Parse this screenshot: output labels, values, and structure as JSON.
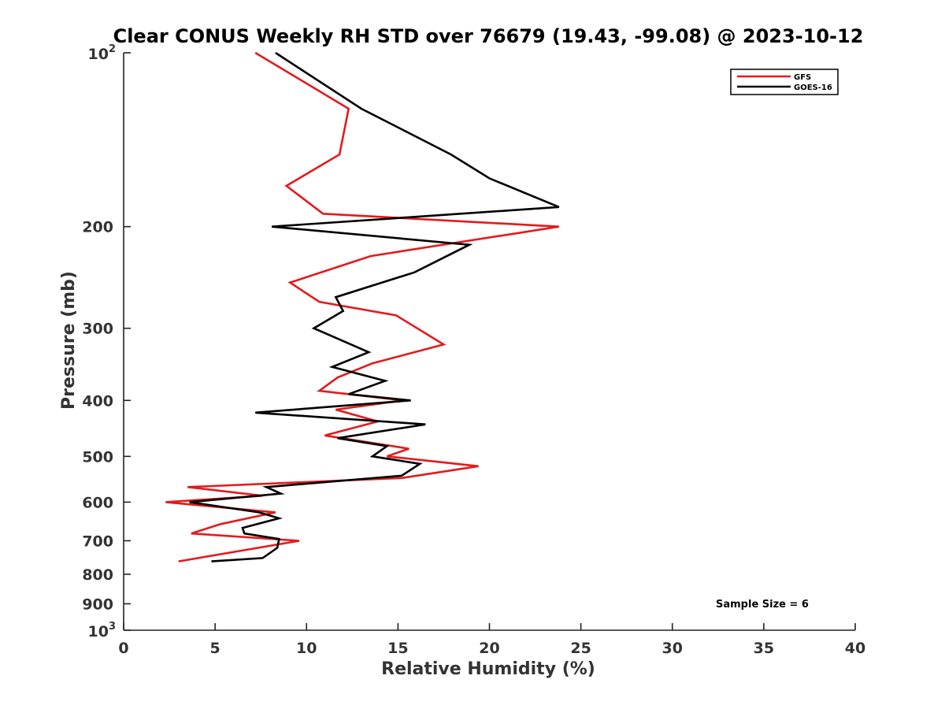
{
  "chart_data": {
    "type": "line",
    "title": "Clear CONUS Weekly RH STD over 76679 (19.43, -99.08) @ 2023-10-12",
    "xlabel": "Relative Humidity (%)",
    "ylabel": "Pressure (mb)",
    "xlim": [
      0,
      40
    ],
    "ylim": [
      100,
      1000
    ],
    "y_scale": "log",
    "y_reversed": true,
    "grid": false,
    "legend_position": "top-right",
    "x_ticks": [
      "0",
      "5",
      "10",
      "15",
      "20",
      "25",
      "30",
      "35",
      "40"
    ],
    "y_ticks": [
      {
        "value": 100,
        "base": "10",
        "exp": "2"
      },
      {
        "value": 200,
        "label": "200"
      },
      {
        "value": 300,
        "label": "300"
      },
      {
        "value": 400,
        "label": "400"
      },
      {
        "value": 500,
        "label": "500"
      },
      {
        "value": 600,
        "label": "600"
      },
      {
        "value": 700,
        "label": "700"
      },
      {
        "value": 800,
        "label": "800"
      },
      {
        "value": 900,
        "label": "900"
      },
      {
        "value": 1000,
        "base": "10",
        "exp": "3"
      }
    ],
    "series": [
      {
        "name": "GFS",
        "color": "#e41a1c",
        "points": [
          [
            7.2,
            100
          ],
          [
            12.3,
            125
          ],
          [
            11.8,
            150
          ],
          [
            8.9,
            170
          ],
          [
            10.9,
            190
          ],
          [
            23.8,
            200
          ],
          [
            13.5,
            225
          ],
          [
            9.1,
            250
          ],
          [
            10.7,
            270
          ],
          [
            14.9,
            285
          ],
          [
            17.5,
            320
          ],
          [
            13.6,
            345
          ],
          [
            11.7,
            365
          ],
          [
            10.7,
            385
          ],
          [
            15.3,
            400
          ],
          [
            11.6,
            415
          ],
          [
            13.9,
            435
          ],
          [
            11.0,
            460
          ],
          [
            15.6,
            485
          ],
          [
            14.4,
            500
          ],
          [
            19.4,
            520
          ],
          [
            15.2,
            545
          ],
          [
            3.5,
            565
          ],
          [
            7.6,
            585
          ],
          [
            2.3,
            600
          ],
          [
            8.3,
            625
          ],
          [
            5.3,
            655
          ],
          [
            3.7,
            680
          ],
          [
            9.6,
            700
          ],
          [
            3.0,
            760
          ]
        ]
      },
      {
        "name": "GOES-16",
        "color": "#000000",
        "points": [
          [
            8.3,
            100
          ],
          [
            13.0,
            125
          ],
          [
            17.9,
            150
          ],
          [
            20.0,
            165
          ],
          [
            23.8,
            185
          ],
          [
            8.1,
            200
          ],
          [
            18.9,
            215
          ],
          [
            15.9,
            240
          ],
          [
            11.6,
            265
          ],
          [
            12.0,
            280
          ],
          [
            10.4,
            300
          ],
          [
            13.4,
            330
          ],
          [
            11.4,
            350
          ],
          [
            14.3,
            370
          ],
          [
            12.3,
            390
          ],
          [
            15.7,
            400
          ],
          [
            7.2,
            420
          ],
          [
            16.5,
            440
          ],
          [
            11.7,
            465
          ],
          [
            14.4,
            480
          ],
          [
            13.6,
            500
          ],
          [
            16.2,
            515
          ],
          [
            15.2,
            540
          ],
          [
            7.8,
            565
          ],
          [
            8.6,
            580
          ],
          [
            3.6,
            600
          ],
          [
            7.4,
            625
          ],
          [
            8.5,
            640
          ],
          [
            6.5,
            665
          ],
          [
            6.6,
            680
          ],
          [
            8.5,
            695
          ],
          [
            8.4,
            720
          ],
          [
            7.6,
            750
          ],
          [
            4.8,
            760
          ]
        ]
      }
    ],
    "annotations": [
      "Sample Size = 6"
    ]
  }
}
